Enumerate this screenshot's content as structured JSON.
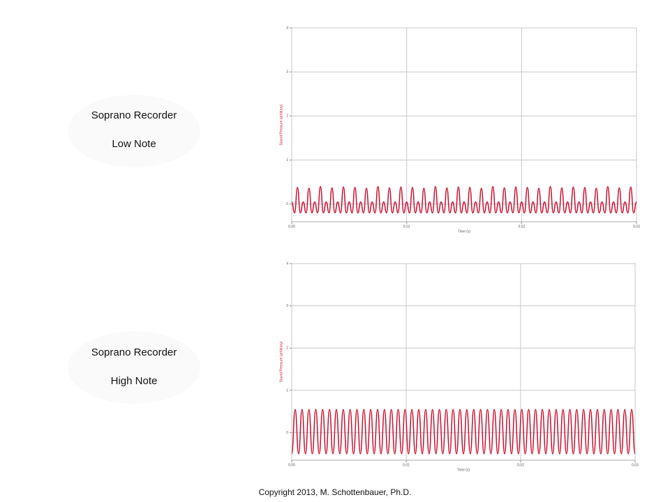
{
  "labels": [
    {
      "instrument": "Soprano Recorder",
      "note": "Low Note"
    },
    {
      "instrument": "Soprano Recorder",
      "note": "High Note"
    }
  ],
  "copyright": "Copyright 2013, M. Schottenbauer, Ph.D.",
  "chart_data": [
    {
      "type": "line",
      "x_label": "Time (s)",
      "y_label": "Sound Pressure (arbitrary)",
      "color": "#c8102e",
      "grid": true,
      "xlim": [
        0,
        0.03
      ],
      "xticks": [
        {
          "value": 0,
          "label": "0.00"
        },
        0.01,
        0.02,
        0.03
      ],
      "ylim": [
        -0.4,
        4
      ],
      "yticks": [
        0,
        1,
        2,
        3,
        4
      ],
      "x": [
        0,
        0.00025,
        0.0005,
        0.00075,
        0.001,
        0.00125,
        0.0015,
        0.00175,
        0.002,
        0.00225,
        0.0025,
        0.00275,
        0.003,
        0.00325,
        0.0035,
        0.00375,
        0.004,
        0.00425,
        0.0045,
        0.00475,
        0.005,
        0.00525,
        0.0055,
        0.00575,
        0.006,
        0.00625,
        0.0065,
        0.00675,
        0.007,
        0.00725,
        0.0075,
        0.00775,
        0.008,
        0.00825,
        0.0085,
        0.00875,
        0.009,
        0.00925,
        0.0095,
        0.00975,
        0.01,
        0.01025,
        0.0105,
        0.01075,
        0.011,
        0.01125,
        0.0115,
        0.01175,
        0.012,
        0.01225,
        0.0125,
        0.01275,
        0.013,
        0.01325,
        0.0135,
        0.01375,
        0.014,
        0.01425,
        0.0145,
        0.01475,
        0.015,
        0.01525,
        0.0155,
        0.01575,
        0.016,
        0.01625,
        0.0165,
        0.01675,
        0.017,
        0.01725,
        0.0175,
        0.01775,
        0.018,
        0.01825,
        0.0185,
        0.01875,
        0.019,
        0.01925,
        0.0195,
        0.01975,
        0.02,
        0.02025,
        0.0205,
        0.02075,
        0.021,
        0.02125,
        0.0215,
        0.02175,
        0.022,
        0.02225,
        0.0225,
        0.02275,
        0.023,
        0.02325,
        0.0235,
        0.02375,
        0.024,
        0.02425,
        0.0245,
        0.02475,
        0.025,
        0.02525,
        0.0255,
        0.02575,
        0.026,
        0.02625,
        0.0265,
        0.02675,
        0.027,
        0.02725,
        0.0275,
        0.02775,
        0.028,
        0.02825,
        0.0285,
        0.02875,
        0.029,
        0.02925,
        0.0295,
        0.02975,
        0.03
      ],
      "values": [
        0.05,
        -0.2,
        0.38,
        -0.2,
        0.05,
        -0.2,
        0.36,
        -0.2,
        0.05,
        -0.2,
        0.4,
        -0.2,
        0.05,
        -0.2,
        0.37,
        -0.2,
        0.05,
        -0.2,
        0.39,
        -0.2,
        0.05,
        -0.2,
        0.38,
        -0.2,
        0.05,
        -0.2,
        0.36,
        -0.2,
        0.05,
        -0.2,
        0.4,
        -0.2,
        0.05,
        -0.2,
        0.37,
        -0.2,
        0.05,
        -0.2,
        0.39,
        -0.2,
        0.05,
        -0.2,
        0.38,
        -0.2,
        0.05,
        -0.2,
        0.36,
        -0.2,
        0.05,
        -0.2,
        0.4,
        -0.2,
        0.05,
        -0.2,
        0.37,
        -0.2,
        0.05,
        -0.2,
        0.39,
        -0.2,
        0.05,
        -0.2,
        0.38,
        -0.2,
        0.05,
        -0.2,
        0.36,
        -0.2,
        0.05,
        -0.2,
        0.4,
        -0.2,
        0.05,
        -0.2,
        0.37,
        -0.2,
        0.05,
        -0.2,
        0.39,
        -0.2,
        0.05,
        -0.2,
        0.38,
        -0.2,
        0.05,
        -0.2,
        0.36,
        -0.2,
        0.05,
        -0.2,
        0.4,
        -0.2,
        0.05,
        -0.2,
        0.37,
        -0.2,
        0.05,
        -0.2,
        0.39,
        -0.2,
        0.05,
        -0.2,
        0.38,
        -0.2,
        0.05,
        -0.2,
        0.36,
        -0.2,
        0.05,
        -0.2,
        0.4,
        -0.2,
        0.05,
        -0.2,
        0.37,
        -0.2,
        0.05,
        -0.2,
        0.39,
        -0.2,
        0.05
      ]
    },
    {
      "type": "line",
      "x_label": "Time (s)",
      "y_label": "Sound Pressure (arbitrary)",
      "color": "#c8102e",
      "grid": true,
      "xlim": [
        0,
        0.03
      ],
      "xticks": [
        {
          "value": 0,
          "label": "0.00"
        },
        0.01,
        0.02,
        0.03
      ],
      "ylim": [
        -0.65,
        4
      ],
      "yticks": [
        0,
        1,
        2,
        3,
        4
      ],
      "x": [
        0,
        0.0003,
        0.0006,
        0.0009,
        0.0012,
        0.0015,
        0.0018,
        0.0021,
        0.0024,
        0.0027,
        0.003,
        0.0033,
        0.0036,
        0.0039,
        0.0042,
        0.0045,
        0.0048,
        0.0051,
        0.0054,
        0.0057,
        0.006,
        0.0063,
        0.0066,
        0.0069,
        0.0072,
        0.0075,
        0.0078,
        0.0081,
        0.0084,
        0.0087,
        0.009,
        0.0093,
        0.0096,
        0.0099,
        0.0102,
        0.0105,
        0.0108,
        0.0111,
        0.0114,
        0.0117,
        0.012,
        0.0123,
        0.0126,
        0.0129,
        0.0132,
        0.0135,
        0.0138,
        0.0141,
        0.0144,
        0.0147,
        0.015,
        0.0153,
        0.0156,
        0.0159,
        0.0162,
        0.0165,
        0.0168,
        0.0171,
        0.0174,
        0.0177,
        0.018,
        0.0183,
        0.0186,
        0.0189,
        0.0192,
        0.0195,
        0.0198,
        0.0201,
        0.0204,
        0.0207,
        0.021,
        0.0213,
        0.0216,
        0.0219,
        0.0222,
        0.0225,
        0.0228,
        0.0231,
        0.0234,
        0.0237,
        0.024,
        0.0243,
        0.0246,
        0.0249,
        0.0252,
        0.0255,
        0.0258,
        0.0261,
        0.0264,
        0.0267,
        0.027,
        0.0273,
        0.0276,
        0.0279,
        0.0282,
        0.0285,
        0.0288,
        0.0291,
        0.0294,
        0.0297,
        0.03
      ],
      "values": [
        -0.5,
        0.55,
        -0.5,
        0.55,
        -0.5,
        0.55,
        -0.5,
        0.55,
        -0.5,
        0.55,
        -0.5,
        0.55,
        -0.5,
        0.55,
        -0.5,
        0.55,
        -0.5,
        0.55,
        -0.5,
        0.55,
        -0.5,
        0.55,
        -0.5,
        0.55,
        -0.5,
        0.55,
        -0.5,
        0.55,
        -0.5,
        0.55,
        -0.5,
        0.55,
        -0.5,
        0.55,
        -0.5,
        0.55,
        -0.5,
        0.55,
        -0.5,
        0.55,
        -0.5,
        0.55,
        -0.5,
        0.55,
        -0.5,
        0.55,
        -0.5,
        0.55,
        -0.5,
        0.55,
        -0.5,
        0.55,
        -0.5,
        0.55,
        -0.5,
        0.55,
        -0.5,
        0.55,
        -0.5,
        0.55,
        -0.5,
        0.55,
        -0.5,
        0.55,
        -0.5,
        0.55,
        -0.5,
        0.55,
        -0.5,
        0.55,
        -0.5,
        0.55,
        -0.5,
        0.55,
        -0.5,
        0.55,
        -0.5,
        0.55,
        -0.5,
        0.55,
        -0.5,
        0.55,
        -0.5,
        0.55,
        -0.5,
        0.55,
        -0.5,
        0.55,
        -0.5,
        0.55,
        -0.5,
        0.55,
        -0.5,
        0.55,
        -0.5,
        0.55,
        -0.5,
        0.55,
        -0.5,
        0.55,
        -0.5
      ]
    }
  ]
}
